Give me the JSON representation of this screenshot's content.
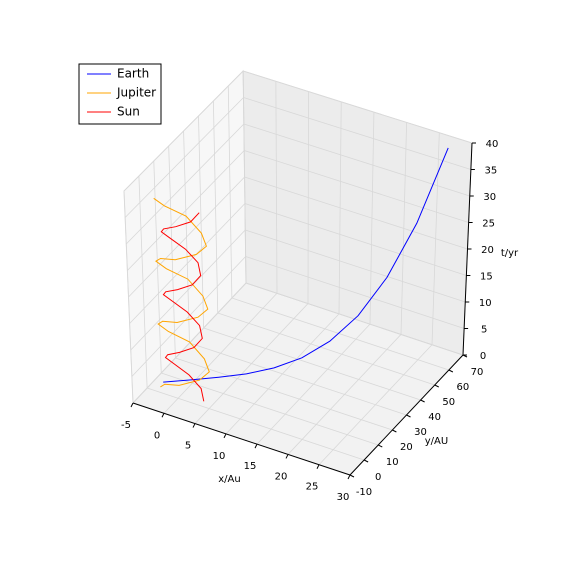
{
  "chart_data": {
    "type": "line3d",
    "xlabel": "x/Au",
    "ylabel": "y/AU",
    "zlabel": "t/yr",
    "xlim": [
      -5,
      30
    ],
    "ylim": [
      -10,
      70
    ],
    "zlim": [
      0,
      40
    ],
    "xticks": [
      -5,
      0,
      5,
      10,
      15,
      20,
      25,
      30
    ],
    "yticks": [
      -10,
      0,
      10,
      20,
      30,
      40,
      50,
      60,
      70
    ],
    "zticks": [
      0,
      5,
      10,
      15,
      20,
      25,
      30,
      35,
      40
    ],
    "grid": true,
    "legend": "upper left",
    "series": [
      {
        "name": "Earth",
        "color": "#0000ff",
        "x": [
          -3.7,
          -0.55,
          2.6,
          5.75,
          8.9,
          12.05,
          15.2,
          18.35,
          21.5,
          24.65,
          27.8
        ],
        "y": [
          5.7,
          11.5,
          17.3,
          23.1,
          28.9,
          34.7,
          40.5,
          46.3,
          52.1,
          57.9,
          63.7
        ],
        "z": [
          0,
          0,
          0.1,
          0.3,
          1.0,
          2.5,
          5.2,
          9.6,
          16.4,
          26.2,
          40
        ]
      },
      {
        "name": "Jupiter",
        "color": "#ffa500",
        "x": [
          -3.5,
          -2.33,
          0.5,
          3.33,
          4.5,
          3.33,
          0.5,
          -2.33,
          -3.5,
          -2.33,
          0.5,
          3.33,
          4.5,
          3.33,
          0.5,
          -2.33,
          -3.5,
          -2.33,
          0.5,
          3.33,
          4.5,
          3.33,
          0.5,
          -2.33,
          -3.5
        ],
        "y": [
          2.8,
          0.97,
          -1.2,
          0.97,
          2.8,
          4.63,
          6.8,
          4.63,
          2.8,
          0.97,
          -1.2,
          0.97,
          2.8,
          4.63,
          6.8,
          4.63,
          2.8,
          0.97,
          -1.2,
          0.97,
          2.8,
          4.63,
          6.8,
          4.63,
          2.8
        ],
        "z": [
          0,
          1.48,
          2.97,
          4.45,
          5.93,
          7.41,
          8.9,
          10.38,
          11.86,
          13.34,
          14.83,
          16.31,
          17.79,
          19.27,
          20.76,
          22.24,
          23.72,
          25.2,
          26.69,
          28.17,
          29.65,
          31.13,
          32.62,
          34.1,
          35.58
        ]
      },
      {
        "name": "Sun",
        "color": "#ff0000",
        "x": [
          3.5,
          2.62,
          0.5,
          -1.62,
          -2.5,
          -1.62,
          0.5,
          2.62,
          3.5,
          2.62,
          0.5,
          -1.62,
          -2.5,
          -1.62,
          0.5,
          2.62,
          3.5,
          2.62,
          0.5,
          -1.62,
          -2.5,
          -1.62,
          0.5,
          2.62,
          3.5
        ],
        "y": [
          2.8,
          4.92,
          5.8,
          4.92,
          2.8,
          0.68,
          -0.2,
          0.68,
          2.8,
          4.92,
          5.8,
          4.92,
          2.8,
          0.68,
          -0.2,
          0.68,
          2.8,
          4.92,
          5.8,
          4.92,
          2.8,
          0.68,
          -0.2,
          0.68,
          2.8
        ],
        "z": [
          0,
          1.48,
          2.97,
          4.45,
          5.93,
          7.41,
          8.9,
          10.38,
          11.86,
          13.34,
          14.83,
          16.31,
          17.79,
          19.27,
          20.76,
          22.24,
          23.72,
          25.2,
          26.69,
          28.17,
          29.65,
          31.13,
          32.62,
          34.1,
          35.58
        ]
      }
    ]
  }
}
